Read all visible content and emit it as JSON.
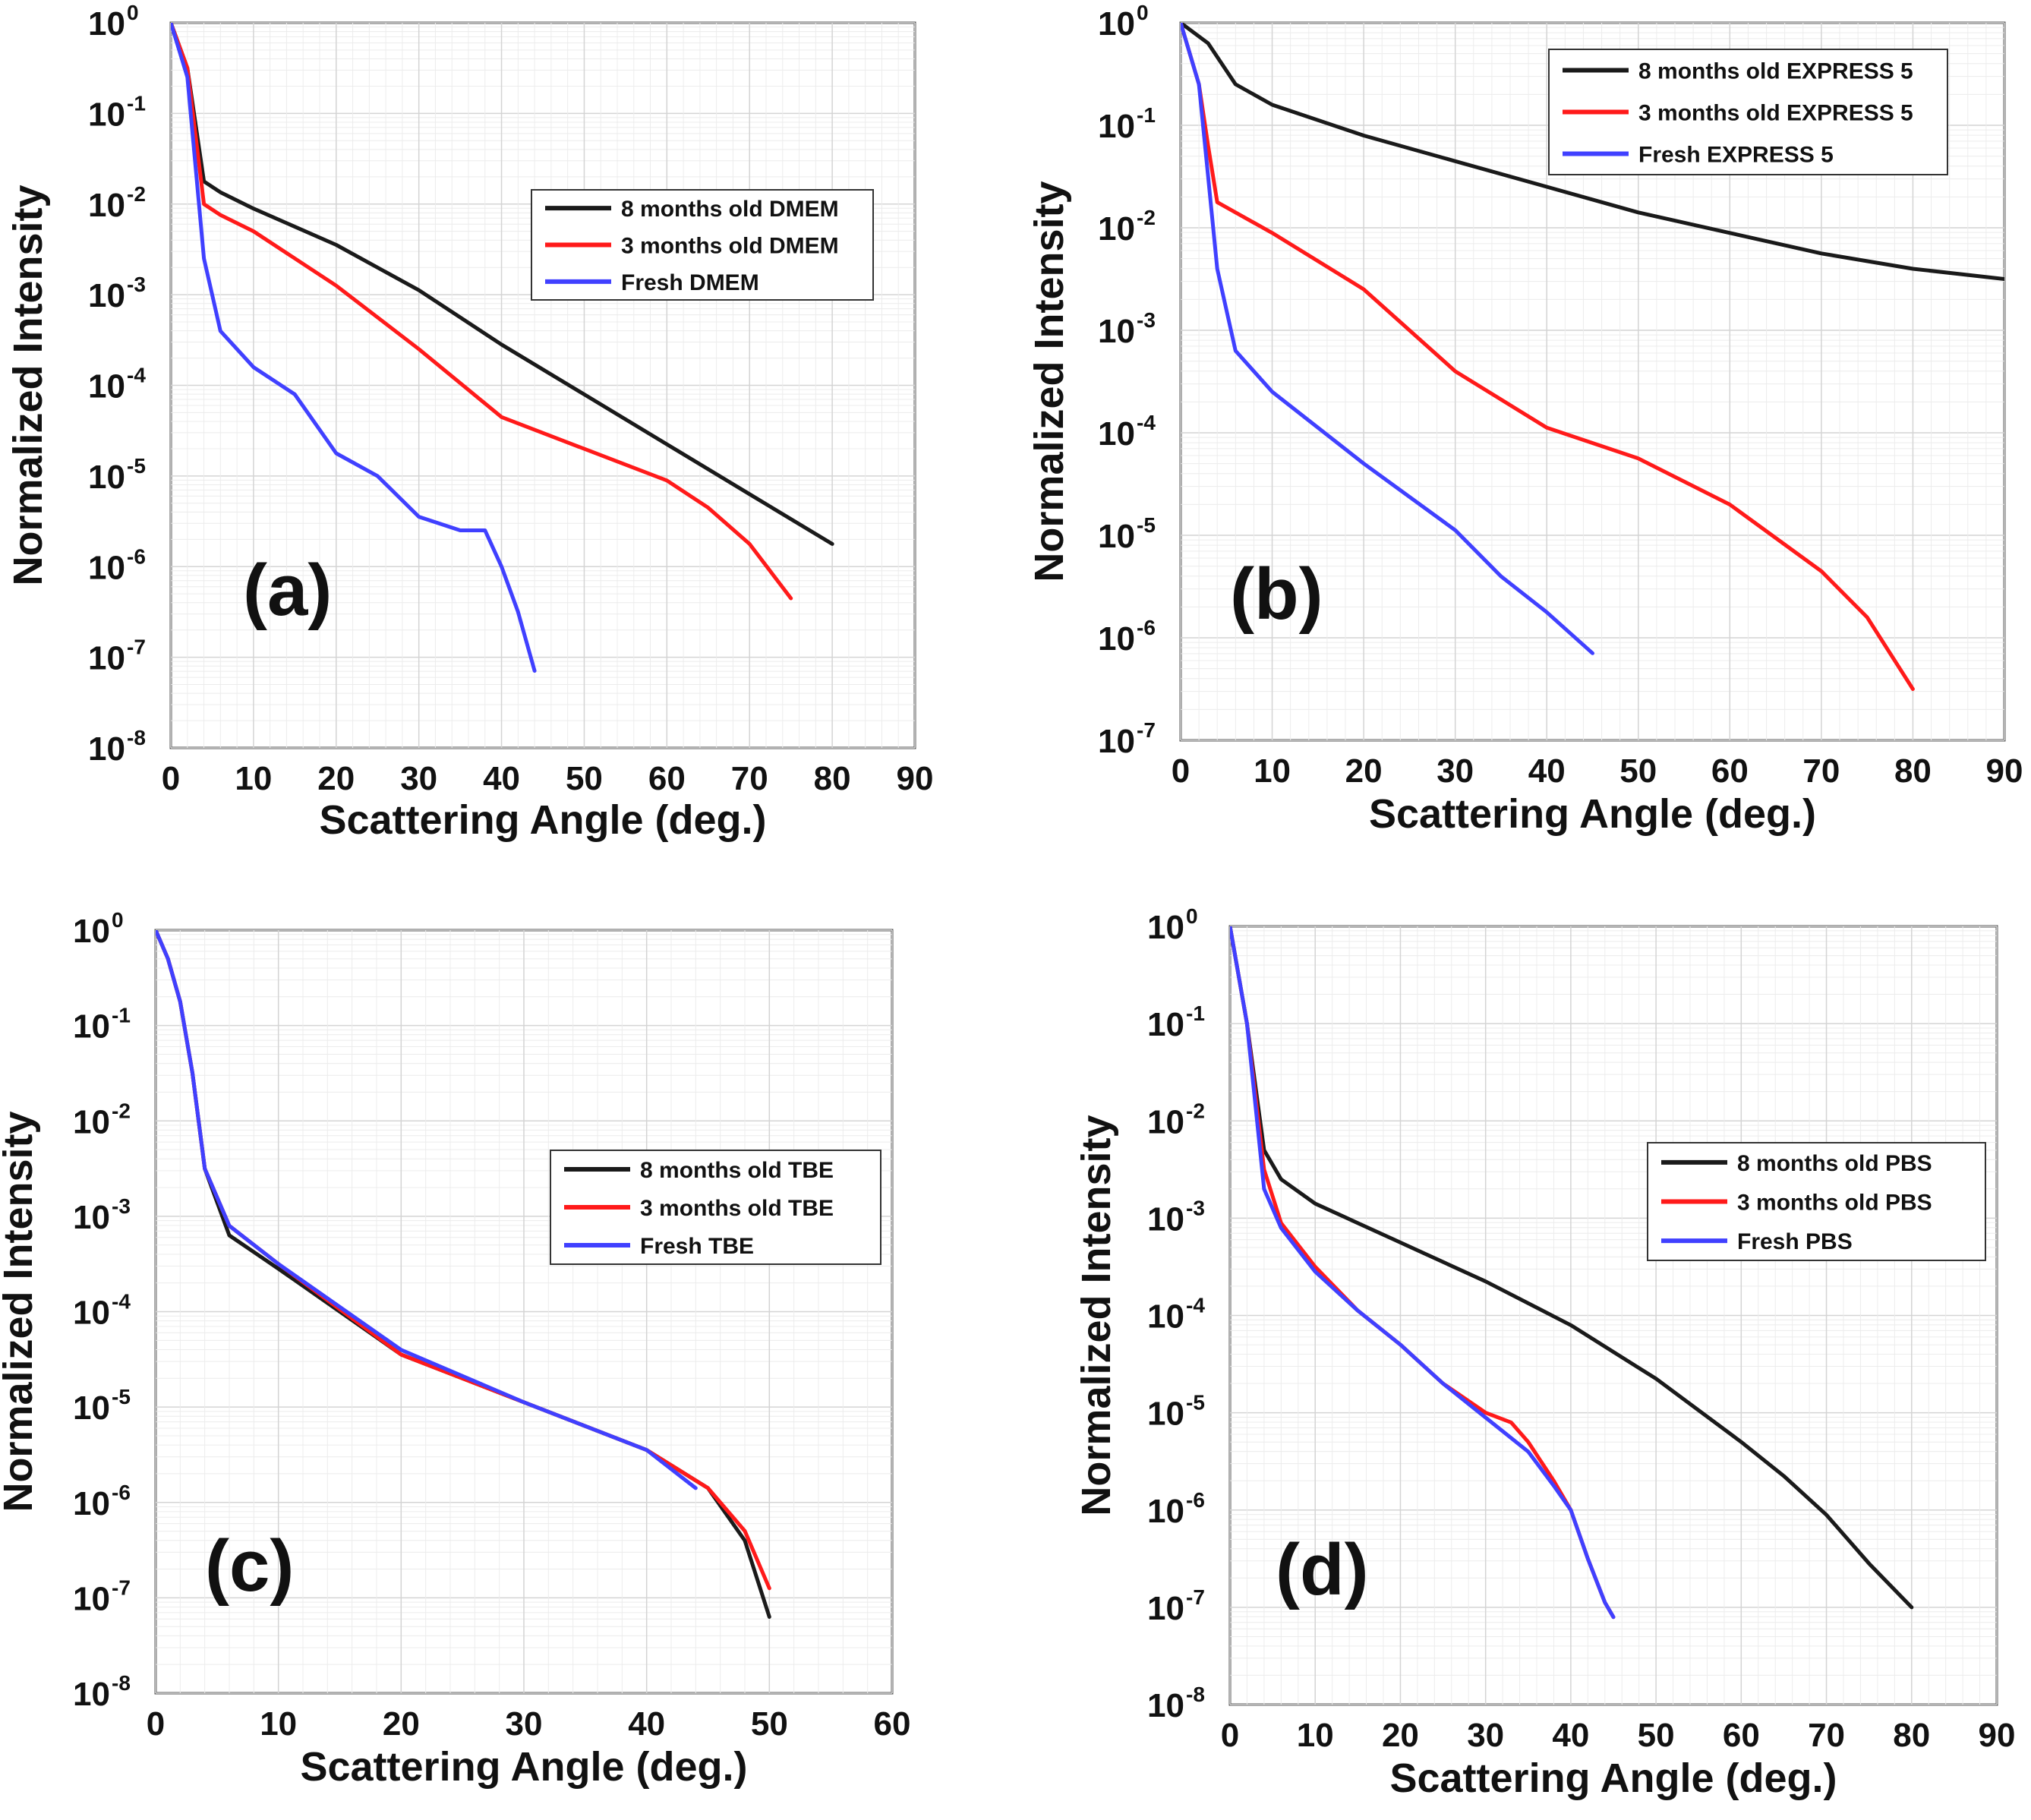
{
  "chart_data": [
    {
      "type": "line",
      "panel_label": "(a)",
      "xlabel": "Scattering Angle (deg.)",
      "ylabel": "Normalized Intensity",
      "xlim": [
        0,
        90
      ],
      "xticks": [
        0,
        10,
        20,
        30,
        40,
        50,
        60,
        70,
        80,
        90
      ],
      "ylim_exp": [
        -8,
        0
      ],
      "yticks_exp": [
        0,
        -1,
        -2,
        -3,
        -4,
        -5,
        -6,
        -7,
        -8
      ],
      "y_scale": "log",
      "grid": true,
      "legend_position": "center-right",
      "series": [
        {
          "name": "8 months old DMEM",
          "color": "#1a1a1a",
          "x": [
            0,
            2,
            4,
            6,
            10,
            20,
            30,
            40,
            50,
            60,
            70,
            80
          ],
          "y_exp": [
            0,
            -0.5,
            -1.75,
            -1.87,
            -2.05,
            -2.45,
            -2.95,
            -3.55,
            -4.1,
            -4.65,
            -5.2,
            -5.75
          ]
        },
        {
          "name": "3 months old DMEM",
          "color": "#ff1a1a",
          "x": [
            0,
            2,
            4,
            6,
            10,
            20,
            30,
            40,
            50,
            60,
            65,
            70,
            75
          ],
          "y_exp": [
            0,
            -0.5,
            -2.0,
            -2.12,
            -2.3,
            -2.9,
            -3.6,
            -4.35,
            -4.7,
            -5.05,
            -5.35,
            -5.75,
            -6.35
          ]
        },
        {
          "name": "Fresh DMEM",
          "color": "#4040ff",
          "x": [
            0,
            2,
            3,
            4,
            6,
            10,
            15,
            20,
            25,
            30,
            35,
            38,
            40,
            42,
            44
          ],
          "y_exp": [
            0,
            -0.6,
            -1.6,
            -2.6,
            -3.4,
            -3.8,
            -4.1,
            -4.75,
            -5.0,
            -5.45,
            -5.6,
            -5.6,
            -6.0,
            -6.5,
            -7.15
          ]
        }
      ]
    },
    {
      "type": "line",
      "panel_label": "(b)",
      "xlabel": "Scattering Angle (deg.)",
      "ylabel": "Normalized Intensity",
      "xlim": [
        0,
        90
      ],
      "xticks": [
        0,
        10,
        20,
        30,
        40,
        50,
        60,
        70,
        80,
        90
      ],
      "ylim_exp": [
        -7,
        0
      ],
      "yticks_exp": [
        0,
        -1,
        -2,
        -3,
        -4,
        -5,
        -6,
        -7
      ],
      "y_scale": "log",
      "grid": true,
      "legend_position": "top-right",
      "series": [
        {
          "name": "8 months old EXPRESS 5",
          "color": "#1a1a1a",
          "x": [
            0,
            3,
            6,
            10,
            20,
            30,
            40,
            50,
            60,
            70,
            80,
            90
          ],
          "y_exp": [
            0,
            -0.2,
            -0.6,
            -0.8,
            -1.1,
            -1.35,
            -1.6,
            -1.85,
            -2.05,
            -2.25,
            -2.4,
            -2.5
          ]
        },
        {
          "name": "3 months old EXPRESS 5",
          "color": "#ff1a1a",
          "x": [
            0,
            2,
            3,
            4,
            6,
            10,
            20,
            30,
            40,
            50,
            60,
            70,
            75,
            80
          ],
          "y_exp": [
            0,
            -0.6,
            -1.2,
            -1.75,
            -1.85,
            -2.05,
            -2.6,
            -3.4,
            -3.95,
            -4.25,
            -4.7,
            -5.35,
            -5.8,
            -6.5
          ]
        },
        {
          "name": "Fresh EXPRESS 5",
          "color": "#4040ff",
          "x": [
            0,
            2,
            3,
            4,
            6,
            10,
            20,
            30,
            35,
            40,
            45
          ],
          "y_exp": [
            0,
            -0.6,
            -1.5,
            -2.4,
            -3.2,
            -3.6,
            -4.3,
            -4.95,
            -5.4,
            -5.75,
            -6.15
          ]
        }
      ]
    },
    {
      "type": "line",
      "panel_label": "(c)",
      "xlabel": "Scattering Angle (deg.)",
      "ylabel": "Normalized Intensity",
      "xlim": [
        0,
        60
      ],
      "xticks": [
        0,
        10,
        20,
        30,
        40,
        50,
        60
      ],
      "ylim_exp": [
        -8,
        0
      ],
      "yticks_exp": [
        0,
        -1,
        -2,
        -3,
        -4,
        -5,
        -6,
        -7,
        -8
      ],
      "y_scale": "log",
      "grid": true,
      "legend_position": "center-right",
      "series": [
        {
          "name": "8 months old TBE",
          "color": "#1a1a1a",
          "x": [
            0,
            1,
            2,
            3,
            4,
            6,
            10,
            20,
            30,
            40,
            45,
            48,
            50
          ],
          "y_exp": [
            0,
            -0.3,
            -0.75,
            -1.5,
            -2.5,
            -3.2,
            -3.55,
            -4.45,
            -4.95,
            -5.45,
            -5.85,
            -6.4,
            -7.2
          ]
        },
        {
          "name": "3 months old TBE",
          "color": "#ff1a1a",
          "x": [
            0,
            1,
            2,
            3,
            4,
            6,
            10,
            20,
            30,
            40,
            45,
            48,
            50
          ],
          "y_exp": [
            0,
            -0.3,
            -0.75,
            -1.5,
            -2.5,
            -3.1,
            -3.5,
            -4.45,
            -4.95,
            -5.45,
            -5.85,
            -6.3,
            -6.9
          ]
        },
        {
          "name": "Fresh TBE",
          "color": "#4040ff",
          "x": [
            0,
            1,
            2,
            3,
            4,
            6,
            10,
            20,
            30,
            40,
            44
          ],
          "y_exp": [
            0,
            -0.3,
            -0.75,
            -1.5,
            -2.5,
            -3.1,
            -3.5,
            -4.4,
            -4.95,
            -5.45,
            -5.85
          ]
        }
      ]
    },
    {
      "type": "line",
      "panel_label": "(d)",
      "xlabel": "Scattering Angle (deg.)",
      "ylabel": "Normalized Intensity",
      "xlim": [
        0,
        90
      ],
      "xticks": [
        0,
        10,
        20,
        30,
        40,
        50,
        60,
        70,
        80,
        90
      ],
      "ylim_exp": [
        -8,
        0
      ],
      "yticks_exp": [
        0,
        -1,
        -2,
        -3,
        -4,
        -5,
        -6,
        -7,
        -8
      ],
      "y_scale": "log",
      "grid": true,
      "legend_position": "center-right",
      "series": [
        {
          "name": "8 months old PBS",
          "color": "#1a1a1a",
          "x": [
            0,
            2,
            4,
            6,
            10,
            20,
            30,
            40,
            50,
            60,
            65,
            70,
            75,
            80
          ],
          "y_exp": [
            0,
            -1.0,
            -2.3,
            -2.6,
            -2.85,
            -3.25,
            -3.65,
            -4.1,
            -4.65,
            -5.3,
            -5.65,
            -6.05,
            -6.55,
            -7.0
          ]
        },
        {
          "name": "3 months old PBS",
          "color": "#ff1a1a",
          "x": [
            0,
            2,
            4,
            6,
            10,
            15,
            20,
            25,
            30,
            33,
            35,
            38,
            40,
            42,
            44,
            45
          ],
          "y_exp": [
            0,
            -1.0,
            -2.5,
            -3.05,
            -3.5,
            -3.95,
            -4.3,
            -4.7,
            -5.0,
            -5.1,
            -5.3,
            -5.7,
            -6.0,
            -6.5,
            -6.95,
            -7.1
          ]
        },
        {
          "name": "Fresh PBS",
          "color": "#4040ff",
          "x": [
            0,
            2,
            4,
            6,
            10,
            15,
            20,
            25,
            30,
            35,
            38,
            40,
            42,
            44,
            45
          ],
          "y_exp": [
            0,
            -1.0,
            -2.7,
            -3.1,
            -3.55,
            -3.95,
            -4.3,
            -4.7,
            -5.05,
            -5.4,
            -5.75,
            -6.0,
            -6.5,
            -6.95,
            -7.1
          ]
        }
      ]
    }
  ]
}
